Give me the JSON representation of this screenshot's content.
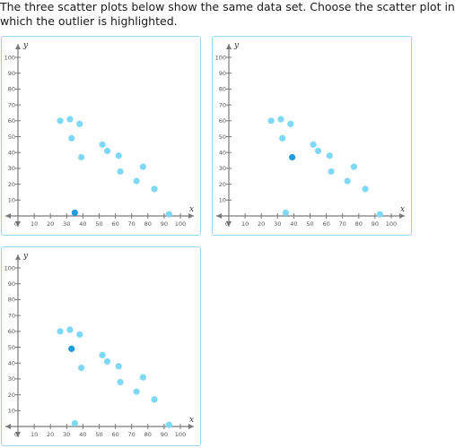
{
  "prompt": "The three scatter plots below show the same data set. Choose the scatter plot in which the outlier is highlighted.",
  "colors": {
    "point": "#7fd8f5",
    "highlight": "#1f9bde",
    "border": "#9ad7ee"
  },
  "choices": [
    {
      "name": "scatter-plot-choice-1",
      "highlight_index": 10
    },
    {
      "name": "scatter-plot-choice-2",
      "highlight_index": 4
    },
    {
      "name": "scatter-plot-choice-3",
      "highlight_index": 2
    }
  ],
  "chart_data": {
    "type": "scatter",
    "xlabel": "x",
    "ylabel": "y",
    "xlim": [
      0,
      100
    ],
    "ylim": [
      0,
      100
    ],
    "x_ticks": [
      "0",
      "10",
      "20",
      "30",
      "40",
      "50",
      "60",
      "70",
      "80",
      "90",
      "100"
    ],
    "y_ticks": [
      "10",
      "20",
      "30",
      "40",
      "50",
      "60",
      "70",
      "80",
      "90",
      "100"
    ],
    "points": [
      [
        26,
        60
      ],
      [
        32,
        61
      ],
      [
        33,
        49
      ],
      [
        38,
        58
      ],
      [
        39,
        37
      ],
      [
        52,
        45
      ],
      [
        55,
        41
      ],
      [
        62,
        38
      ],
      [
        63,
        28
      ],
      [
        73,
        22
      ],
      [
        35,
        2
      ],
      [
        77,
        31
      ],
      [
        84,
        17
      ],
      [
        93,
        1
      ]
    ]
  }
}
